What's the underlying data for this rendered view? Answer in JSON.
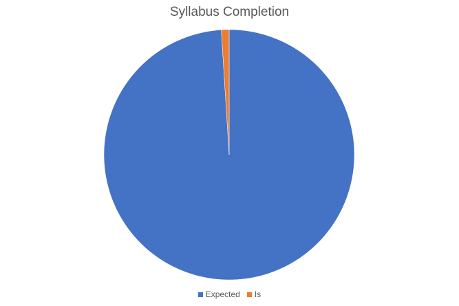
{
  "chart_data": {
    "type": "pie",
    "title": "Syllabus Completion",
    "legend_position": "bottom",
    "slices": [
      {
        "label": "Expected",
        "value": 99,
        "color": "#4472C4"
      },
      {
        "label": "Is",
        "value": 1,
        "color": "#ED7D31"
      }
    ]
  }
}
